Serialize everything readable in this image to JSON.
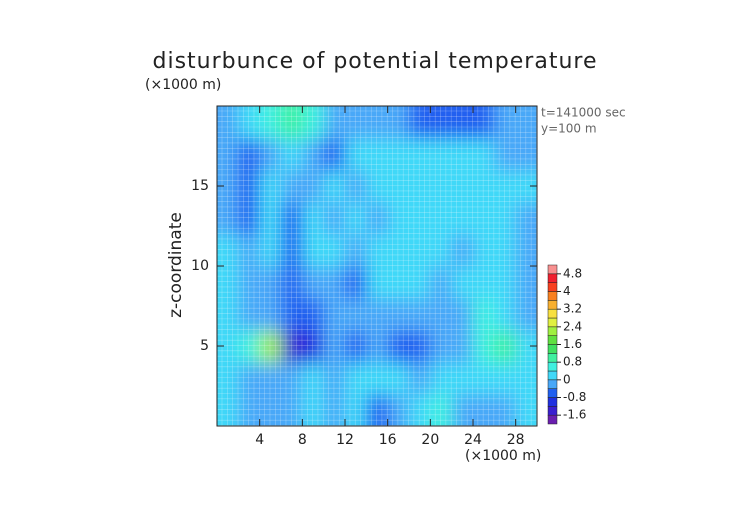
{
  "chart_data": {
    "type": "contour",
    "title": "disturbunce of potential temperature",
    "y_unit": "(×1000 m)",
    "x_unit": "(×1000 m)",
    "ylabel": "z-coordinate",
    "annotations": [
      "t=141000 sec",
      "y=100 m"
    ],
    "xlim": [
      0,
      30
    ],
    "ylim": [
      0,
      20
    ],
    "xticks": [
      4,
      8,
      12,
      16,
      20,
      24,
      28
    ],
    "yticks": [
      5,
      10,
      15
    ],
    "grid": true,
    "x": [
      1,
      3,
      5,
      7,
      9,
      11,
      13,
      15,
      17,
      19,
      21,
      23,
      25,
      27,
      29
    ],
    "y": [
      1,
      3,
      5,
      7,
      9,
      11,
      13,
      15,
      17,
      19
    ],
    "z": [
      [
        0.1,
        -0.3,
        -0.4,
        -0.2,
        0.1,
        -0.2,
        0.2,
        -0.5,
        -0.2,
        0.1,
        0.6,
        -0.4,
        -0.3,
        -0.2,
        0.2
      ],
      [
        0.2,
        -0.2,
        -0.3,
        -0.3,
        0.1,
        -0.3,
        0.1,
        0.1,
        0.1,
        -0.2,
        0.1,
        0.1,
        0.2,
        0.1,
        0.1
      ],
      [
        0.1,
        0.4,
        2.2,
        -1.3,
        -0.9,
        -0.4,
        -0.5,
        -0.2,
        -0.5,
        -0.6,
        -0.3,
        -0.1,
        0.4,
        1.0,
        0.3
      ],
      [
        0.2,
        -0.3,
        -0.4,
        -0.8,
        -0.7,
        -0.3,
        -0.2,
        -0.3,
        -0.2,
        -0.3,
        -0.1,
        -0.2,
        0.6,
        0.3,
        -0.2
      ],
      [
        0.2,
        -0.2,
        -0.3,
        -0.6,
        -0.2,
        -0.3,
        -0.5,
        0.2,
        0.2,
        0.1,
        -0.2,
        0.2,
        0.1,
        0.2,
        -0.4
      ],
      [
        0.1,
        -0.3,
        0.2,
        -0.6,
        0.1,
        0.3,
        -0.4,
        0.2,
        0.1,
        0.2,
        0.1,
        -0.2,
        0.3,
        0.1,
        -0.3
      ],
      [
        -0.1,
        -0.5,
        0.3,
        -0.5,
        0.2,
        -0.1,
        0.3,
        -0.2,
        0.2,
        0.1,
        0.3,
        0.2,
        0.1,
        0.2,
        -0.2
      ],
      [
        -0.2,
        -0.7,
        0.2,
        -0.3,
        -0.4,
        0.2,
        -0.2,
        0.1,
        0.3,
        0.2,
        0.1,
        0.3,
        0.2,
        0.3,
        0.2
      ],
      [
        -0.3,
        -0.6,
        -0.4,
        0.1,
        -0.2,
        -0.5,
        0.1,
        0.2,
        0.2,
        0.3,
        0.2,
        0.3,
        0.1,
        -0.2,
        -0.1
      ],
      [
        -0.3,
        0.2,
        0.6,
        0.8,
        0.5,
        -0.2,
        -0.3,
        -0.4,
        -0.3,
        -0.6,
        -0.6,
        -0.6,
        -0.5,
        -0.3,
        -0.2
      ]
    ],
    "levels": [
      -2,
      -1.6,
      -1.2,
      -0.8,
      -0.4,
      0,
      0.4,
      0.8,
      1.2,
      1.6,
      2,
      2.4,
      2.8,
      3.2,
      3.6,
      4,
      4.4,
      4.8,
      5.2
    ],
    "colors": [
      "#6a1fb0",
      "#3a1fd0",
      "#2030e0",
      "#2060f0",
      "#48a8f8",
      "#40d8f8",
      "#40f0e0",
      "#40f0a0",
      "#40e060",
      "#60e040",
      "#a0f040",
      "#e0f040",
      "#f8e040",
      "#f8b030",
      "#f88020",
      "#f84020",
      "#f02030",
      "#f89090"
    ],
    "cticks": [
      -1.6,
      -0.8,
      0,
      0.8,
      1.6,
      2.4,
      3.2,
      4,
      4.8
    ]
  }
}
